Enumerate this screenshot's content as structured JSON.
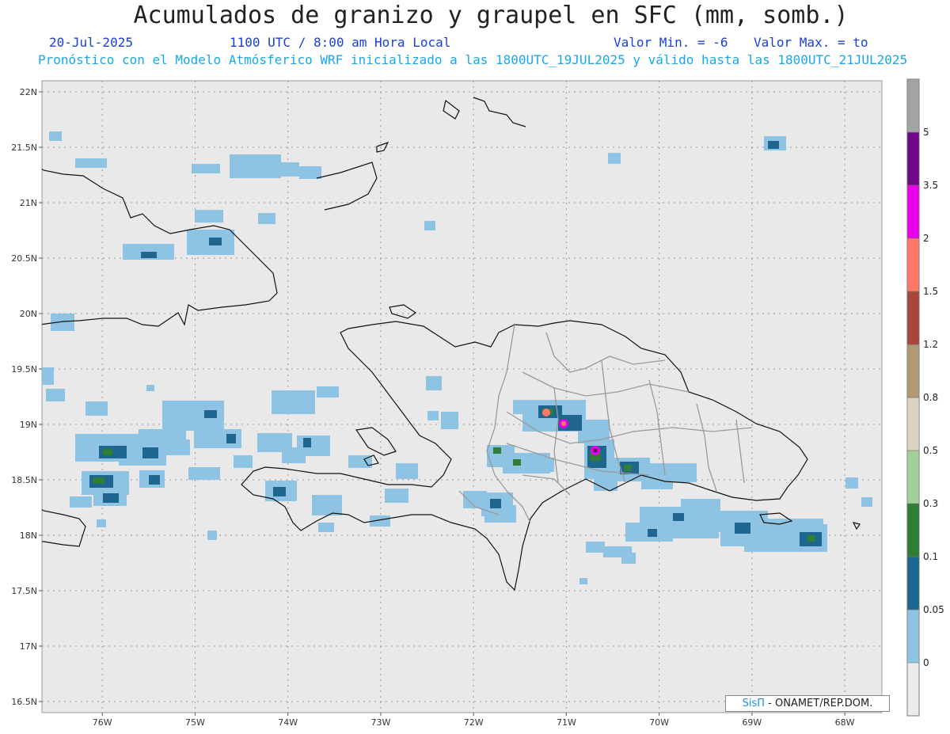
{
  "header": {
    "title": "Acumulados de granizo y graupel en SFC (mm, somb.)",
    "date": "20-Jul-2025",
    "time": "1100 UTC / 8:00 am Hora Local",
    "vmin": "Valor Min. = -6",
    "vmax": "Valor Max. = to",
    "subtitle": "Pronóstico con el Modelo Atmósferico WRF inicializado a las 1800UTC_19JUL2025 y válido hasta las  1800UTC_21JUL2025"
  },
  "map": {
    "lon_range": [
      -76.65,
      -67.6
    ],
    "lat_range": [
      16.4,
      22.1
    ],
    "lat_ticks": [
      "22N",
      "21.5N",
      "21N",
      "20.5N",
      "20N",
      "19.5N",
      "19N",
      "18.5N",
      "18N",
      "17.5N",
      "17N",
      "16.5N"
    ],
    "lon_ticks": [
      "76W",
      "75W",
      "74W",
      "73W",
      "72W",
      "71W",
      "70W",
      "69W",
      "68W"
    ],
    "grid": true,
    "background_color": "#e9e9e9"
  },
  "colorbar": {
    "labels": [
      "0",
      "0.05",
      "0.1",
      "0.3",
      "0.5",
      "0.8",
      "1.2",
      "1.5",
      "2",
      "3.5",
      "5"
    ],
    "colors": [
      "#8ec3e3",
      "#1e6690",
      "#2f7e35",
      "#a3cf9a",
      "#dcd3c2",
      "#b19a73",
      "#a8463c",
      "#ff7766",
      "#e800e8",
      "#6e0a8a",
      "#a3a3a3"
    ]
  },
  "credit": {
    "brand": "SisΠ",
    "text": " - ONAMET/REP.DOM."
  }
}
